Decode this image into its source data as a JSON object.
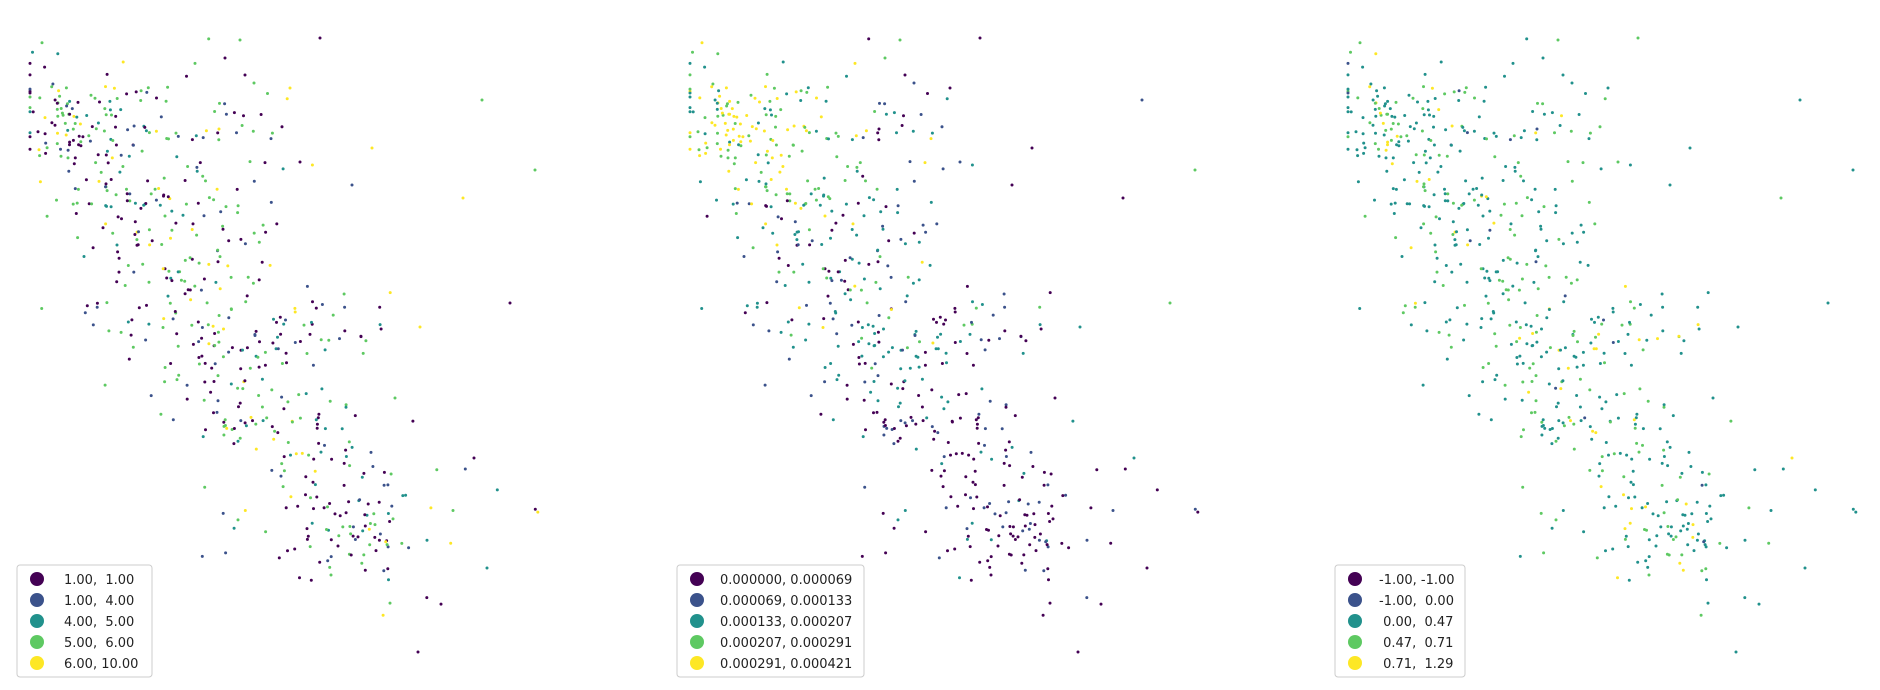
{
  "palette": [
    "#440154",
    "#3b528b",
    "#21918c",
    "#5ec962",
    "#fde725"
  ],
  "chart_data": [
    {
      "type": "scatter",
      "subtype": "choropleth point map",
      "axes_visible": false,
      "legend_placement": "lower-left",
      "legend": [
        {
          "label": "1.00,  1.00",
          "color": "#440154"
        },
        {
          "label": "1.00,  4.00",
          "color": "#3b528b"
        },
        {
          "label": "4.00,  5.00",
          "color": "#21918c"
        },
        {
          "label": "5.00,  6.00",
          "color": "#5ec962"
        },
        {
          "label": "6.00, 10.00",
          "color": "#fde725"
        }
      ]
    },
    {
      "type": "scatter",
      "subtype": "choropleth point map",
      "axes_visible": false,
      "legend_placement": "lower-left",
      "legend": [
        {
          "label": "0.000000, 0.000069",
          "color": "#440154"
        },
        {
          "label": "0.000069, 0.000133",
          "color": "#3b528b"
        },
        {
          "label": "0.000133, 0.000207",
          "color": "#21918c"
        },
        {
          "label": "0.000207, 0.000291",
          "color": "#5ec962"
        },
        {
          "label": "0.000291, 0.000421",
          "color": "#fde725"
        }
      ]
    },
    {
      "type": "scatter",
      "subtype": "choropleth point map",
      "axes_visible": false,
      "legend_placement": "lower-left",
      "legend": [
        {
          "label": "-1.00, -1.00",
          "color": "#440154"
        },
        {
          "label": "-1.00,  0.00",
          "color": "#3b528b"
        },
        {
          "label": " 0.00,  0.47",
          "color": "#21918c"
        },
        {
          "label": " 0.47,  0.71",
          "color": "#5ec962"
        },
        {
          "label": " 0.71,  1.29",
          "color": "#fde725"
        }
      ]
    }
  ]
}
